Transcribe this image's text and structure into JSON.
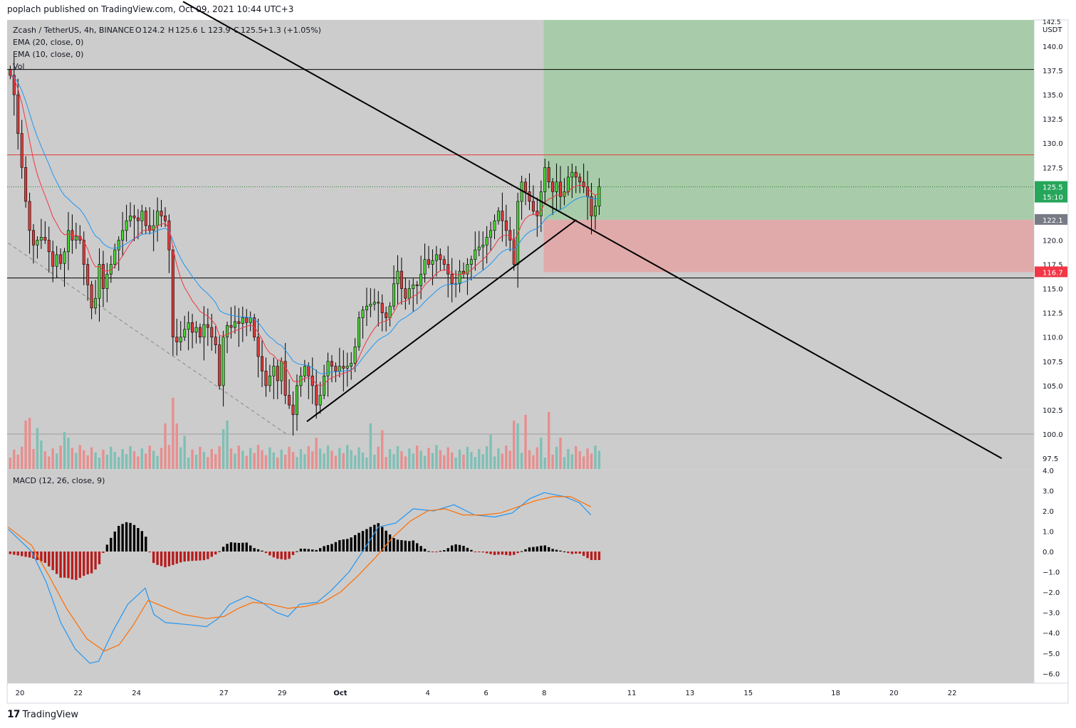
{
  "header": {
    "published": "poplach published on TradingView.com, Oct 09, 2021 10:44 UTC+3"
  },
  "brand": {
    "logo": "17",
    "name": "TradingView",
    "logo_icon": "tradingview-logo-icon"
  },
  "colors": {
    "up": "#4cd137",
    "down": "#e03a3a",
    "vol_up": "#7fbfb5",
    "vol_down": "#e88e8e",
    "ema20": "#2196f3",
    "ema10": "#f23645",
    "macd": "#2196f3",
    "signal": "#ff6d00",
    "hist_pos": "#000000",
    "hist_neg": "#b71c1c",
    "pane_bg": "#cccccc",
    "profit": "#9ccc9e",
    "loss": "#e3a6a6"
  },
  "legend": {
    "symbol": "Zcash / TetherUS, 4h, BINANCE",
    "o_label": "O",
    "o": "124.2",
    "h_label": "H",
    "h": "125.6",
    "l_label": "L",
    "l": "123.9",
    "c_label": "C",
    "c": "125.5",
    "chg": "+1.3 (+1.05%)",
    "ema20": "EMA (20, close, 0)",
    "ema10": "EMA (10, close, 0)",
    "vol": "Vol",
    "macd": "MACD (12, 26, close, 9)"
  },
  "axis": {
    "currency": "USDT",
    "price_top_label": "142.5",
    "price_ticks": [
      "140.0",
      "137.5",
      "135.0",
      "132.5",
      "130.0",
      "127.5",
      "120.0",
      "117.5",
      "115.0",
      "112.5",
      "110.0",
      "107.5",
      "105.0",
      "102.5",
      "100.0",
      "97.5"
    ],
    "macd_ticks": [
      "4.0",
      "3.0",
      "2.0",
      "1.0",
      "0.0",
      "−1.0",
      "−2.0",
      "−3.0",
      "−4.0",
      "−5.0",
      "−6.0"
    ],
    "time_ticks": [
      "20",
      "22",
      "24",
      "27",
      "29",
      "Oct",
      "4",
      "6",
      "8",
      "11",
      "13",
      "15",
      "18",
      "20",
      "22"
    ],
    "price_badge": "125.5",
    "countdown": "15:10",
    "entry_badge": "122.1",
    "stop_badge": "116.7"
  },
  "chart_data": [
    {
      "type": "candlestick",
      "title": "",
      "symbol": "Zcash / TetherUS, 4h, BINANCE",
      "ylim": [
        96.5,
        143
      ],
      "x_range_days": [
        19.6,
        54.2
      ],
      "x_note_dates": "x in days from Sep 0 (Oct 1 = 31)",
      "price_levels": [
        137.6,
        128.8,
        125.5,
        116.1,
        100.0
      ],
      "position": {
        "entry": 122.1,
        "target": 143.0,
        "stop": 116.7,
        "start_day": 37.98,
        "end_day": 54.0
      },
      "trendlines": [
        {
          "from": [
            25.6,
            144.6
          ],
          "to": [
            53.7,
            97.5
          ]
        },
        {
          "from": [
            29.85,
            101.3
          ],
          "to": [
            39.1,
            122.1
          ]
        }
      ],
      "dashed_line": {
        "from": [
          19.6,
          119.7
        ],
        "to": [
          29.15,
          100.0
        ]
      },
      "closes": [
        137.0,
        135.0,
        131.0,
        127.5,
        124.0,
        121.0,
        119.5,
        120.0,
        120.3,
        120.0,
        118.8,
        117.3,
        118.5,
        117.6,
        118.8,
        121.0,
        120.0,
        120.4,
        120.0,
        117.5,
        115.4,
        113.0,
        114.0,
        117.5,
        115.0,
        116.5,
        117.5,
        119.0,
        120.0,
        121.0,
        122.0,
        122.5,
        122.3,
        122.0,
        123.0,
        121.5,
        121.0,
        121.5,
        123.0,
        122.5,
        122.0,
        119.0,
        110.0,
        109.5,
        110.0,
        110.8,
        111.5,
        110.5,
        111.0,
        110.0,
        111.3,
        111.0,
        110.0,
        109.2,
        105.0,
        110.0,
        111.2,
        111.0,
        111.6,
        111.4,
        112.0,
        111.5,
        112.0,
        110.0,
        108.0,
        106.5,
        105.0,
        106.0,
        107.0,
        105.5,
        107.5,
        104.0,
        103.0,
        102.0,
        105.0,
        106.0,
        107.0,
        106.0,
        105.0,
        103.0,
        104.0,
        106.0,
        107.5,
        107.0,
        106.5,
        107.0,
        106.8,
        107.0,
        107.3,
        109.0,
        112.0,
        112.8,
        113.2,
        113.4,
        113.6,
        113.5,
        112.5,
        112.0,
        113.2,
        115.5,
        116.8,
        115.0,
        114.0,
        115.0,
        115.4,
        115.3,
        116.5,
        118.0,
        117.5,
        117.9,
        118.5,
        118.0,
        117.5,
        116.5,
        115.5,
        115.5,
        116.8,
        116.5,
        117.5,
        118.0,
        119.0,
        119.3,
        119.5,
        120.3,
        121.0,
        122.0,
        123.0,
        122.0,
        121.0,
        120.0,
        117.5,
        124.0,
        126.0,
        125.0,
        124.0,
        123.0,
        122.5,
        125.0,
        127.5,
        126.0,
        125.0,
        126.0,
        124.5,
        125.0,
        126.5,
        127.0,
        126.5,
        126.0,
        125.5,
        124.5,
        122.5,
        123.5,
        125.5
      ],
      "volume_pattern_note": "volume bars under candles, green/red by candle direction",
      "series": [
        {
          "name": "EMA (20, close, 0)",
          "color": "#2196f3"
        },
        {
          "name": "EMA (10, close, 0)",
          "color": "#f23645"
        }
      ]
    },
    {
      "type": "line",
      "title": "MACD (12, 26, close, 9)",
      "ylim": [
        -6.5,
        4.0
      ],
      "series": [
        {
          "name": "",
          "values_note": "MACD line",
          "points": [
            [
              19.6,
              1.1
            ],
            [
              20.4,
              0.0
            ],
            [
              20.9,
              -1.5
            ],
            [
              21.4,
              -3.5
            ],
            [
              21.9,
              -4.8
            ],
            [
              22.4,
              -5.5
            ],
            [
              22.7,
              -5.4
            ],
            [
              23.2,
              -3.9
            ],
            [
              23.7,
              -2.6
            ],
            [
              24.3,
              -1.8
            ],
            [
              24.6,
              -3.1
            ],
            [
              25.0,
              -3.5
            ],
            [
              25.8,
              -3.6
            ],
            [
              26.4,
              -3.7
            ],
            [
              26.8,
              -3.3
            ],
            [
              27.2,
              -2.6
            ],
            [
              27.8,
              -2.2
            ],
            [
              28.3,
              -2.5
            ],
            [
              28.8,
              -3.0
            ],
            [
              29.2,
              -3.2
            ],
            [
              29.6,
              -2.6
            ],
            [
              30.2,
              -2.5
            ],
            [
              30.7,
              -1.9
            ],
            [
              31.3,
              -1.0
            ],
            [
              31.9,
              0.3
            ],
            [
              32.3,
              1.2
            ],
            [
              32.9,
              1.4
            ],
            [
              33.5,
              2.1
            ],
            [
              34.2,
              2.0
            ],
            [
              34.9,
              2.3
            ],
            [
              35.6,
              1.8
            ],
            [
              36.3,
              1.7
            ],
            [
              36.9,
              1.9
            ],
            [
              37.5,
              2.6
            ],
            [
              38.0,
              2.9
            ],
            [
              38.7,
              2.7
            ],
            [
              39.2,
              2.4
            ],
            [
              39.6,
              1.8
            ]
          ]
        },
        {
          "name": "",
          "values_note": "Signal line",
          "points": [
            [
              19.6,
              1.2
            ],
            [
              20.4,
              0.3
            ],
            [
              21.0,
              -1.2
            ],
            [
              21.6,
              -2.8
            ],
            [
              22.3,
              -4.3
            ],
            [
              22.9,
              -4.9
            ],
            [
              23.4,
              -4.6
            ],
            [
              23.9,
              -3.6
            ],
            [
              24.4,
              -2.4
            ],
            [
              24.9,
              -2.7
            ],
            [
              25.6,
              -3.1
            ],
            [
              26.4,
              -3.3
            ],
            [
              27.0,
              -3.2
            ],
            [
              27.5,
              -2.8
            ],
            [
              28.0,
              -2.5
            ],
            [
              28.6,
              -2.6
            ],
            [
              29.2,
              -2.8
            ],
            [
              29.8,
              -2.7
            ],
            [
              30.4,
              -2.5
            ],
            [
              31.0,
              -2.0
            ],
            [
              31.6,
              -1.2
            ],
            [
              32.2,
              -0.3
            ],
            [
              32.8,
              0.7
            ],
            [
              33.4,
              1.5
            ],
            [
              34.0,
              2.0
            ],
            [
              34.6,
              2.1
            ],
            [
              35.2,
              1.8
            ],
            [
              35.9,
              1.8
            ],
            [
              36.5,
              1.9
            ],
            [
              37.1,
              2.2
            ],
            [
              37.7,
              2.5
            ],
            [
              38.3,
              2.7
            ],
            [
              38.9,
              2.7
            ],
            [
              39.6,
              2.2
            ]
          ]
        }
      ],
      "histogram_note": "bars from zero, black above / dark red below"
    }
  ]
}
